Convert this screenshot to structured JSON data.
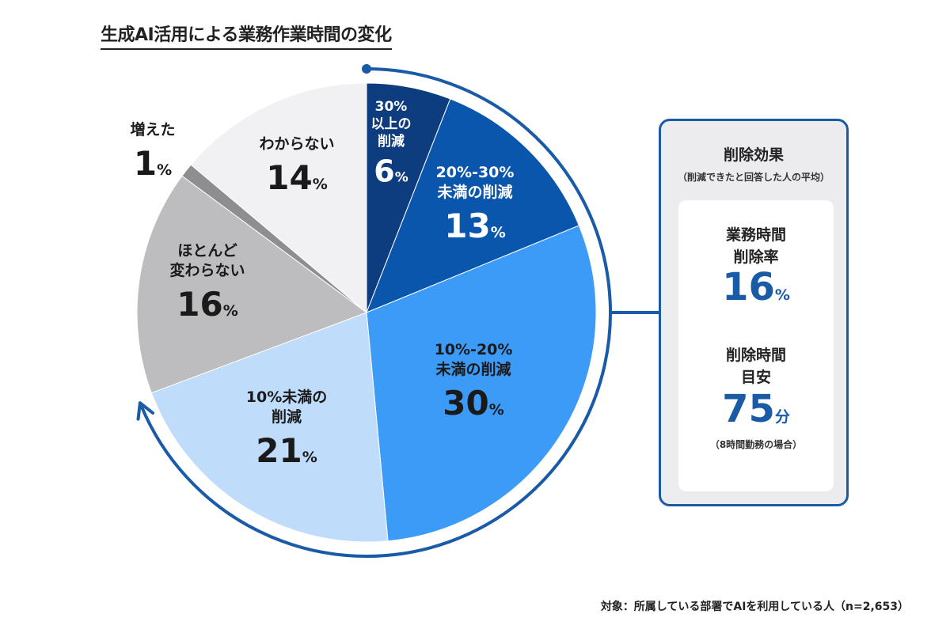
{
  "title": "生成AI活用による業務作業時間の変化",
  "chart_data": {
    "type": "pie",
    "unit": "%",
    "slices": [
      {
        "name": "30%以上の削減",
        "label_lines": [
          "30%",
          "以上の",
          "削減"
        ],
        "value": 6,
        "color": "#0d3d7e",
        "text_color": "#ffffff"
      },
      {
        "name": "20%-30%未満の削減",
        "label_lines": [
          "20%-30%",
          "未満の削減"
        ],
        "value": 13,
        "color": "#0b56ad",
        "text_color": "#ffffff"
      },
      {
        "name": "10%-20%未満の削減",
        "label_lines": [
          "10%-20%",
          "未満の削減"
        ],
        "value": 30,
        "color": "#3d9bf8",
        "text_color": "#1a1a1a"
      },
      {
        "name": "10%未満の削減",
        "label_lines": [
          "10%未満の",
          "削減"
        ],
        "value": 21,
        "color": "#c0dcfb",
        "text_color": "#1a1a1a"
      },
      {
        "name": "ほとんど変わらない",
        "label_lines": [
          "ほとんど",
          "変わらない"
        ],
        "value": 16,
        "color": "#bdbcbe",
        "text_color": "#1a1a1a"
      },
      {
        "name": "増えた",
        "label_lines": [
          "増えた"
        ],
        "value": 1,
        "color": "#8e8e90",
        "text_color": "#1a1a1a"
      },
      {
        "name": "わからない",
        "label_lines": [
          "わからない"
        ],
        "value": 14,
        "color": "#f1f0f2",
        "text_color": "#1a1a1a"
      }
    ],
    "arrow_color": "#1a5ba8"
  },
  "panel": {
    "title": "削除効果",
    "subtitle": "（削減できたと回答した人の平均）",
    "metric1": {
      "label_line1": "業務時間",
      "label_line2": "削除率",
      "value": "16",
      "unit": "%"
    },
    "metric2": {
      "label_line1": "削除時間",
      "label_line2": "目安",
      "value": "75",
      "unit": "分",
      "note": "（8時間勤務の場合）"
    }
  },
  "footnote": "対象：所属している部署でAIを利用している人（n=2,653）"
}
